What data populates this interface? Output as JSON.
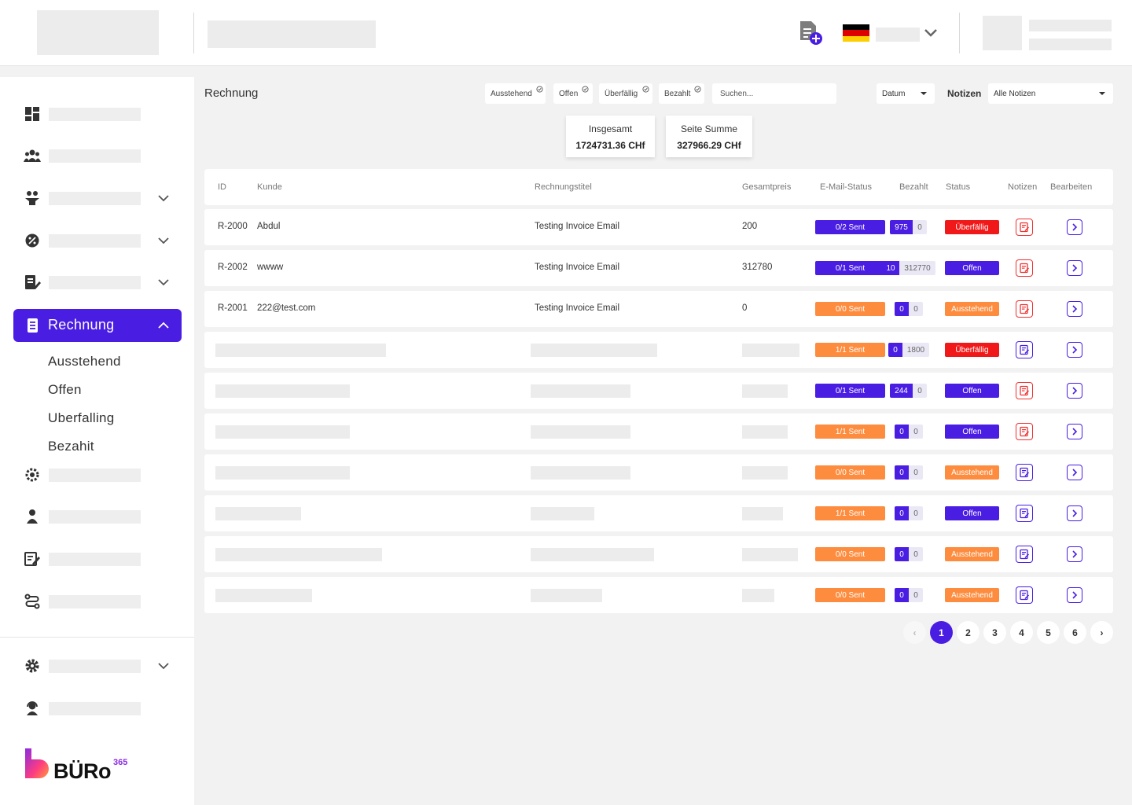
{
  "topbar": {
    "add_invoice_icon": "add-document-icon",
    "language_flag": "germany"
  },
  "sidebar": {
    "active_item": "Rechnung",
    "submenu": [
      "Ausstehend",
      "Offen",
      "Uberfalling",
      "Bezahit"
    ],
    "brand": {
      "name": "BÜRo",
      "superscript": "365"
    }
  },
  "main": {
    "title": "Rechnung",
    "filters": [
      "Ausstehend",
      "Offen",
      "Überfällig",
      "Bezahlt"
    ],
    "search_placeholder": "Suchen...",
    "date_select": "Datum",
    "notes_label": "Notizen",
    "notes_select": "Alle Notizen"
  },
  "summary": {
    "total_label": "Insgesamt",
    "total_value": "1724731.36 CHf",
    "page_label": "Seite Summe",
    "page_value": "327966.29 CHf"
  },
  "table": {
    "headers": [
      "ID",
      "Kunde",
      "Rechnungstitel",
      "Gesamtpreis",
      "E-Mail-Status",
      "Bezahlt",
      "Status",
      "Notizen",
      "Bearbeiten"
    ],
    "rows": [
      {
        "id": "R-2000",
        "kunde": "Abdul",
        "titel": "Testing Invoice Email",
        "preis": "200",
        "email": "0/2 Sent",
        "paid_a": "975",
        "paid_b": "0",
        "status": "Überfällig"
      },
      {
        "id": "R-2002",
        "kunde": "wwww",
        "titel": "Testing Invoice Email",
        "preis": "312780",
        "email": "0/1 Sent",
        "paid_a": "10",
        "paid_b": "312770",
        "status": "Offen"
      },
      {
        "id": "R-2001",
        "kunde": "222@test.com",
        "titel": "Testing Invoice Email",
        "preis": "0",
        "email": "0/0 Sent",
        "paid_a": "0",
        "paid_b": "0",
        "status": "Ausstehend"
      },
      {
        "email": "1/1 Sent",
        "paid_a": "0",
        "paid_b": "1800",
        "status": "Überfällig"
      },
      {
        "email": "0/1 Sent",
        "paid_a": "244",
        "paid_b": "0",
        "status": "Offen"
      },
      {
        "email": "1/1 Sent",
        "paid_a": "0",
        "paid_b": "0",
        "status": "Offen"
      },
      {
        "email": "0/0 Sent",
        "paid_a": "0",
        "paid_b": "0",
        "status": "Ausstehend"
      },
      {
        "email": "1/1 Sent",
        "paid_a": "0",
        "paid_b": "0",
        "status": "Offen"
      },
      {
        "email": "0/0 Sent",
        "paid_a": "0",
        "paid_b": "0",
        "status": "Ausstehend"
      },
      {
        "email": "0/0 Sent",
        "paid_a": "0",
        "paid_b": "0",
        "status": "Ausstehend"
      }
    ]
  },
  "pagination": {
    "prev": "‹",
    "pages": [
      "1",
      "2",
      "3",
      "4",
      "5",
      "6"
    ],
    "current": "1",
    "next": "›"
  },
  "colors": {
    "accent": "#4a1de3",
    "orange": "#fd8c3e",
    "red": "#f01818"
  }
}
